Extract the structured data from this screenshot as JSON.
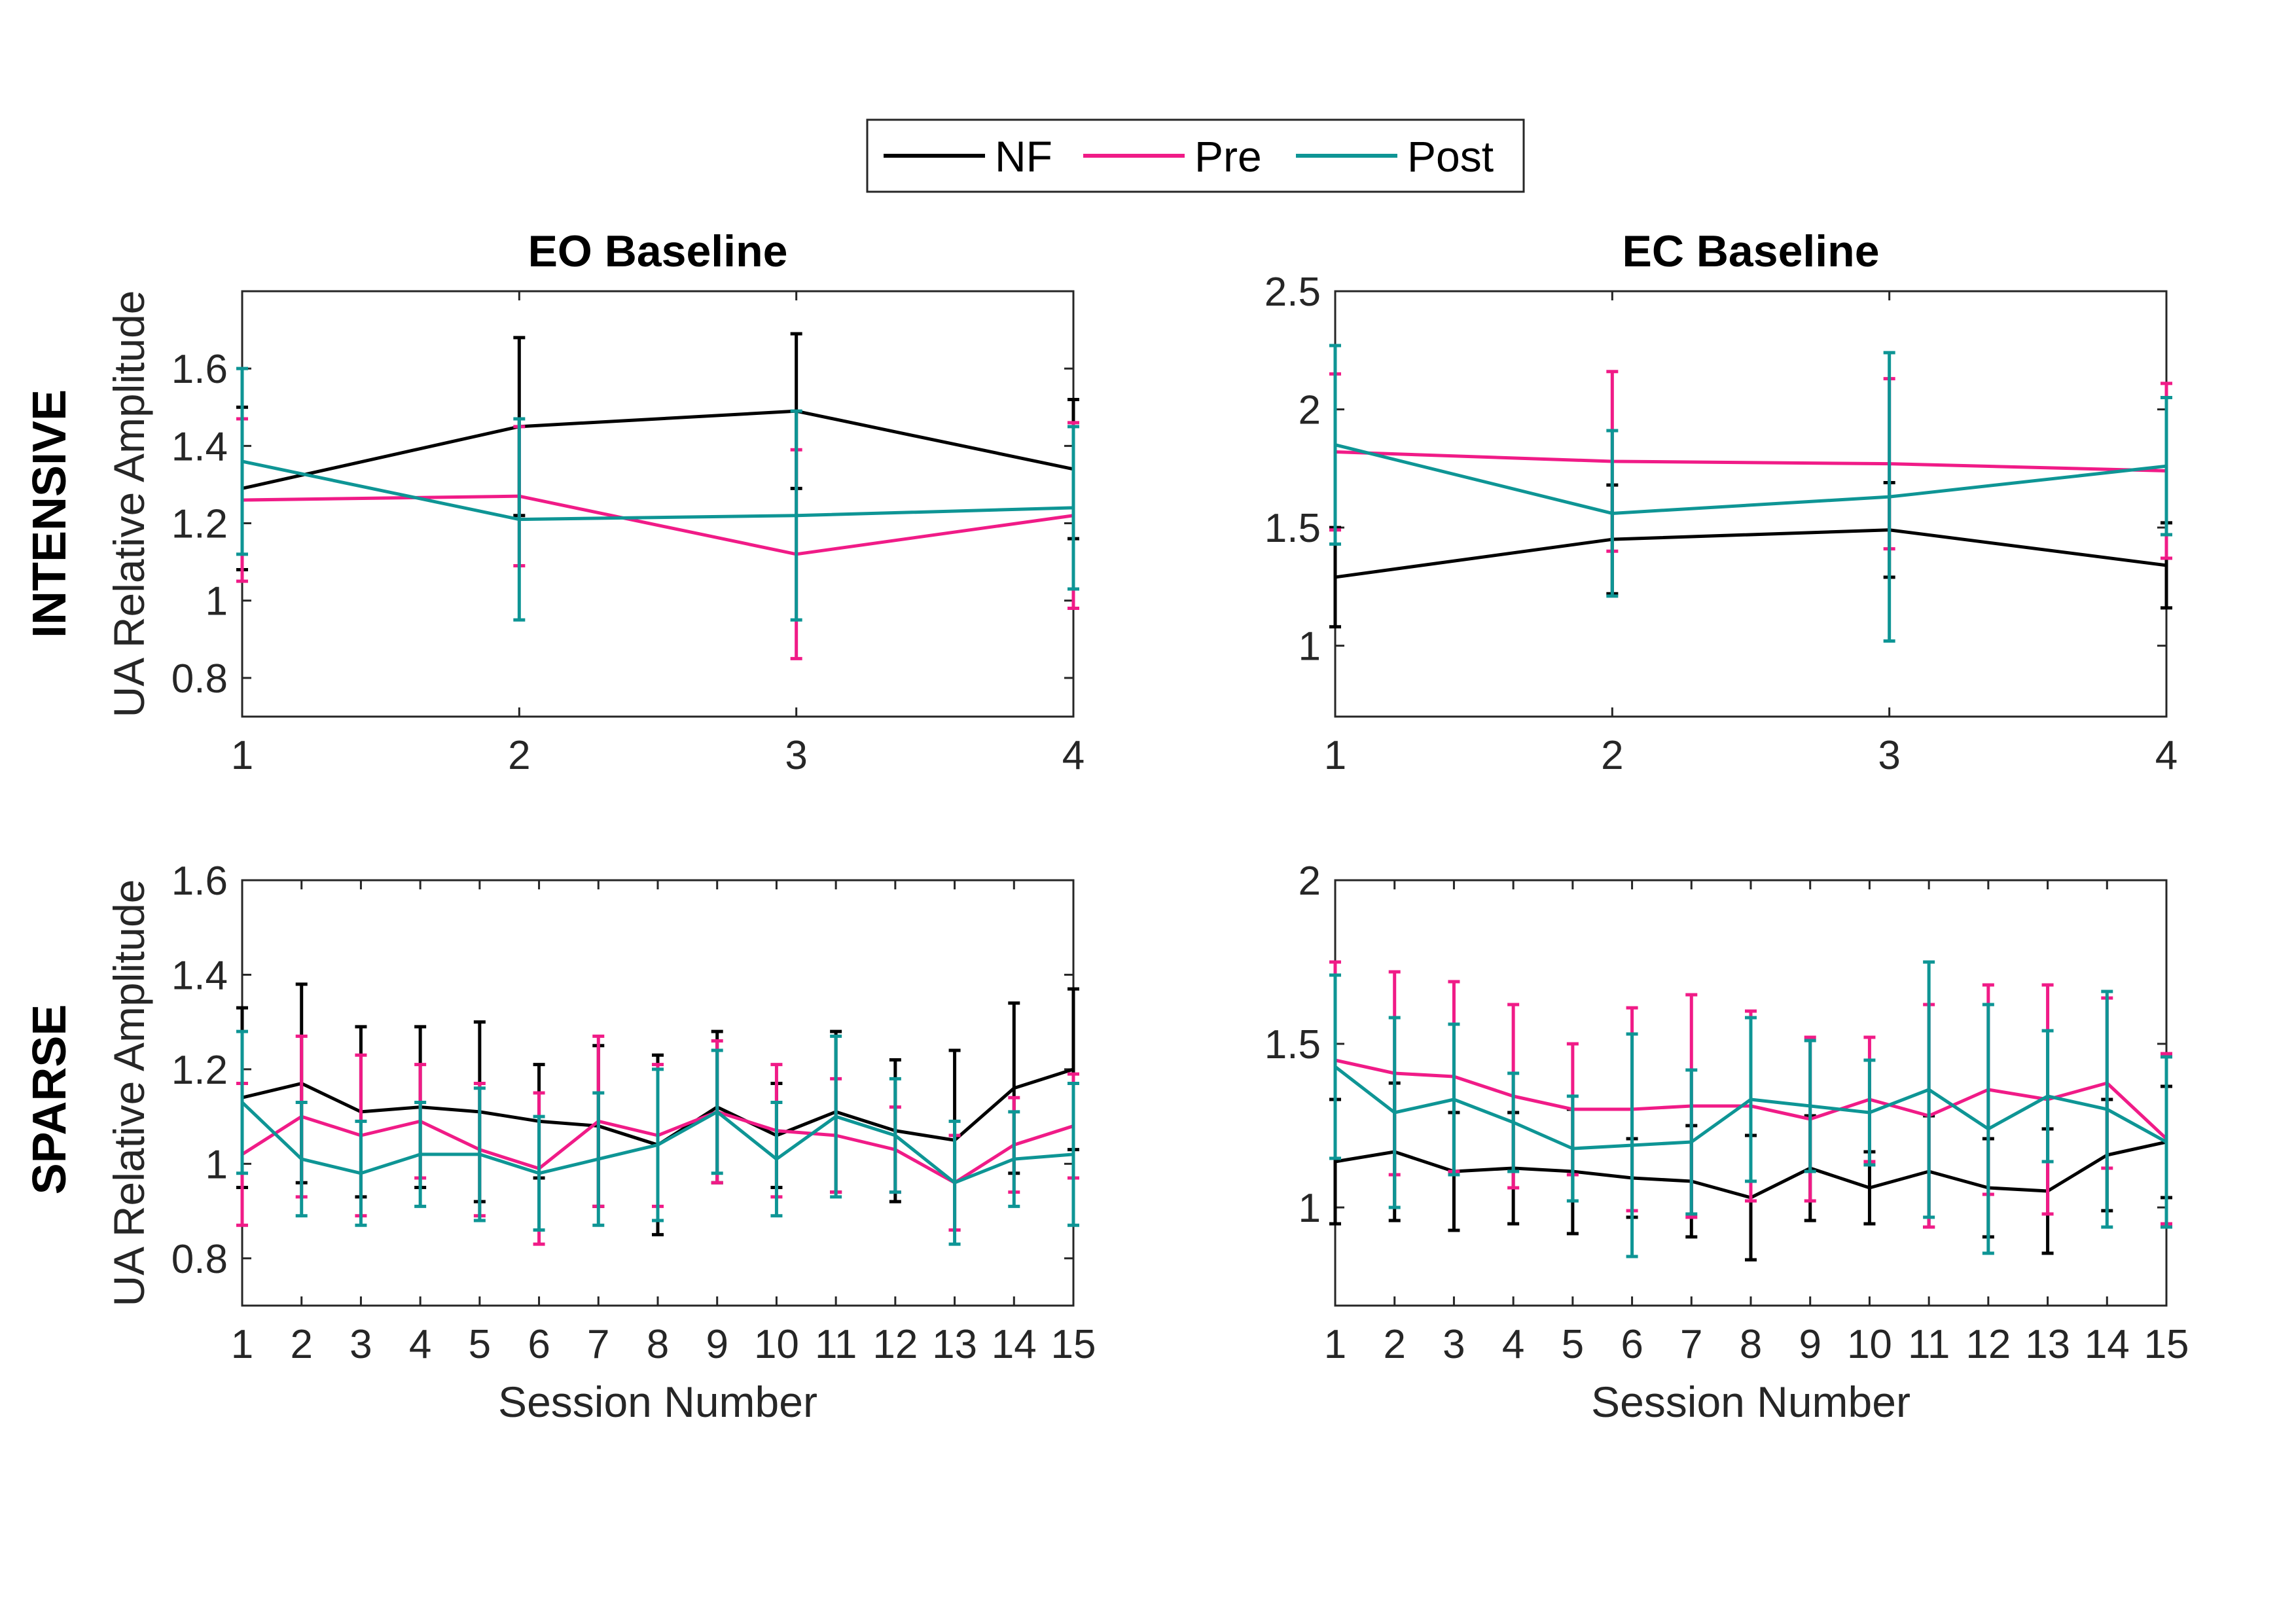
{
  "legend": [
    {
      "name": "NF",
      "color": "#000000"
    },
    {
      "name": "Pre",
      "color": "#F01B87"
    },
    {
      "name": "Post",
      "color": "#0E9595"
    }
  ],
  "row_labels": {
    "intensive": "INTENSIVE",
    "sparse": "SPARSE"
  },
  "chart_data": [
    {
      "id": "eo-intensive",
      "type": "line",
      "title": "EO Baseline",
      "xlabel": "",
      "ylabel": "UA Relative Amplitude",
      "xlim": [
        1,
        4
      ],
      "ylim": [
        0.7,
        1.8
      ],
      "xticks": [
        1,
        2,
        3,
        4
      ],
      "yticks": [
        0.8,
        1,
        1.2,
        1.4,
        1.6
      ],
      "ytick_labels": [
        "0.8",
        "1",
        "1.2",
        "1.4",
        "1.6"
      ],
      "x": [
        1,
        2,
        3,
        4
      ],
      "series": [
        {
          "name": "NF",
          "values": [
            1.29,
            1.45,
            1.49,
            1.34
          ],
          "err": [
            0.21,
            0.23,
            0.2,
            0.18
          ]
        },
        {
          "name": "Pre",
          "values": [
            1.26,
            1.27,
            1.12,
            1.22
          ],
          "err": [
            0.21,
            0.18,
            0.27,
            0.24
          ]
        },
        {
          "name": "Post",
          "values": [
            1.36,
            1.21,
            1.22,
            1.24
          ],
          "err": [
            0.24,
            0.26,
            0.27,
            0.21
          ]
        }
      ]
    },
    {
      "id": "ec-intensive",
      "type": "line",
      "title": "EC Baseline",
      "xlabel": "",
      "ylabel": "",
      "xlim": [
        1,
        4
      ],
      "ylim": [
        0.7,
        2.5
      ],
      "xticks": [
        1,
        2,
        3,
        4
      ],
      "yticks": [
        1,
        1.5,
        2,
        2.5
      ],
      "ytick_labels": [
        "1",
        "1.5",
        "2",
        "2.5"
      ],
      "x": [
        1,
        2,
        3,
        4
      ],
      "series": [
        {
          "name": "NF",
          "values": [
            1.29,
            1.45,
            1.49,
            1.34
          ],
          "err": [
            0.21,
            0.23,
            0.2,
            0.18
          ]
        },
        {
          "name": "Pre",
          "values": [
            1.82,
            1.78,
            1.77,
            1.74
          ],
          "err": [
            0.33,
            0.38,
            0.36,
            0.37
          ]
        },
        {
          "name": "Post",
          "values": [
            1.85,
            1.56,
            1.63,
            1.76
          ],
          "err": [
            0.42,
            0.35,
            0.61,
            0.29
          ]
        }
      ]
    },
    {
      "id": "eo-sparse",
      "type": "line",
      "title": "",
      "xlabel": "Session Number",
      "ylabel": "UA Relative Amplitude",
      "xlim": [
        1,
        15
      ],
      "ylim": [
        0.7,
        1.6
      ],
      "xticks": [
        1,
        2,
        3,
        4,
        5,
        6,
        7,
        8,
        9,
        10,
        11,
        12,
        13,
        14,
        15
      ],
      "yticks": [
        0.8,
        1,
        1.2,
        1.4,
        1.6
      ],
      "ytick_labels": [
        "0.8",
        "1",
        "1.2",
        "1.4",
        "1.6"
      ],
      "x": [
        1,
        2,
        3,
        4,
        5,
        6,
        7,
        8,
        9,
        10,
        11,
        12,
        13,
        14,
        15
      ],
      "series": [
        {
          "name": "NF",
          "values": [
            1.14,
            1.17,
            1.11,
            1.12,
            1.11,
            1.09,
            1.08,
            1.04,
            1.12,
            1.06,
            1.11,
            1.07,
            1.05,
            1.16,
            1.2
          ],
          "err": [
            0.19,
            0.21,
            0.18,
            0.17,
            0.19,
            0.12,
            0.17,
            0.19,
            0.16,
            0.11,
            0.17,
            0.15,
            0.19,
            0.18,
            0.17
          ]
        },
        {
          "name": "Pre",
          "values": [
            1.02,
            1.1,
            1.06,
            1.09,
            1.03,
            0.99,
            1.09,
            1.06,
            1.11,
            1.07,
            1.06,
            1.03,
            0.96,
            1.04,
            1.08
          ],
          "err": [
            0.15,
            0.17,
            0.17,
            0.12,
            0.14,
            0.16,
            0.18,
            0.15,
            0.15,
            0.14,
            0.12,
            0.09,
            0.1,
            0.1,
            0.11
          ]
        },
        {
          "name": "Post",
          "values": [
            1.13,
            1.01,
            0.98,
            1.02,
            1.02,
            0.98,
            1.01,
            1.04,
            1.11,
            1.01,
            1.1,
            1.06,
            0.96,
            1.01,
            1.02
          ],
          "err": [
            0.15,
            0.12,
            0.11,
            0.11,
            0.14,
            0.12,
            0.14,
            0.16,
            0.13,
            0.12,
            0.17,
            0.12,
            0.13,
            0.1,
            0.15
          ]
        }
      ]
    },
    {
      "id": "ec-sparse",
      "type": "line",
      "title": "",
      "xlabel": "Session Number",
      "ylabel": "",
      "xlim": [
        1,
        15
      ],
      "ylim": [
        0.7,
        2.0
      ],
      "xticks": [
        1,
        2,
        3,
        4,
        5,
        6,
        7,
        8,
        9,
        10,
        11,
        12,
        13,
        14,
        15
      ],
      "yticks": [
        1,
        1.5,
        2
      ],
      "ytick_labels": [
        "1",
        "1.5",
        "2"
      ],
      "x": [
        1,
        2,
        3,
        4,
        5,
        6,
        7,
        8,
        9,
        10,
        11,
        12,
        13,
        14,
        15
      ],
      "series": [
        {
          "name": "NF",
          "values": [
            1.14,
            1.17,
            1.11,
            1.12,
            1.11,
            1.09,
            1.08,
            1.03,
            1.12,
            1.06,
            1.11,
            1.06,
            1.05,
            1.16,
            1.2
          ],
          "err": [
            0.19,
            0.21,
            0.18,
            0.17,
            0.19,
            0.12,
            0.17,
            0.19,
            0.16,
            0.11,
            0.17,
            0.15,
            0.19,
            0.17,
            0.17
          ]
        },
        {
          "name": "Pre",
          "values": [
            1.45,
            1.41,
            1.4,
            1.34,
            1.3,
            1.3,
            1.31,
            1.31,
            1.27,
            1.33,
            1.28,
            1.36,
            1.33,
            1.38,
            1.21
          ],
          "err": [
            0.3,
            0.31,
            0.29,
            0.28,
            0.2,
            0.31,
            0.34,
            0.29,
            0.25,
            0.19,
            0.34,
            0.32,
            0.35,
            0.26,
            0.26
          ]
        },
        {
          "name": "Post",
          "values": [
            1.43,
            1.29,
            1.33,
            1.26,
            1.18,
            1.19,
            1.2,
            1.33,
            1.31,
            1.29,
            1.36,
            1.24,
            1.34,
            1.3,
            1.2
          ],
          "err": [
            0.28,
            0.29,
            0.23,
            0.15,
            0.16,
            0.34,
            0.22,
            0.25,
            0.2,
            0.16,
            0.39,
            0.38,
            0.2,
            0.36,
            0.26
          ]
        }
      ]
    }
  ]
}
